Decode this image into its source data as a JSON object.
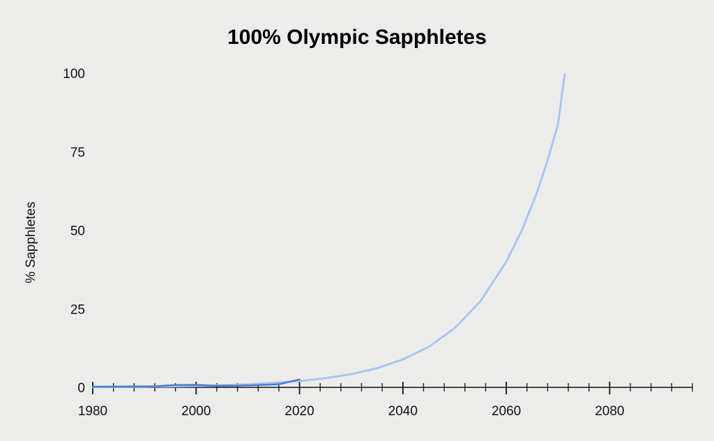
{
  "chart_data": {
    "type": "line",
    "title": "100% Olympic Sapphletes",
    "xlabel": "",
    "ylabel": "% Sapphletes",
    "xlim": [
      1980,
      2096
    ],
    "ylim": [
      0,
      100
    ],
    "x_ticks": [
      1980,
      2000,
      2020,
      2040,
      2060,
      2080
    ],
    "y_ticks": [
      0,
      25,
      50,
      75,
      100
    ],
    "x_minor_step": 4,
    "grid": false,
    "legend": "none",
    "series": [
      {
        "role": "observed",
        "color": "#3d7fe0",
        "points": [
          [
            1980,
            0.2
          ],
          [
            1984,
            0.25
          ],
          [
            1988,
            0.3
          ],
          [
            1992,
            0.3
          ],
          [
            1996,
            0.75
          ],
          [
            2000,
            0.8
          ],
          [
            2004,
            0.5
          ],
          [
            2008,
            0.55
          ],
          [
            2012,
            0.7
          ],
          [
            2016,
            1.0
          ],
          [
            2020,
            2.5
          ]
        ]
      },
      {
        "role": "projection",
        "color": "#abc5ec",
        "points": [
          [
            1980,
            0.1
          ],
          [
            1990,
            0.22
          ],
          [
            2000,
            0.45
          ],
          [
            2010,
            0.95
          ],
          [
            2020,
            2.0
          ],
          [
            2025,
            2.9
          ],
          [
            2030,
            4.2
          ],
          [
            2035,
            6.1
          ],
          [
            2040,
            8.9
          ],
          [
            2045,
            12.9
          ],
          [
            2050,
            18.8
          ],
          [
            2055,
            27.4
          ],
          [
            2060,
            40.0
          ],
          [
            2063,
            49.9
          ],
          [
            2066,
            62.3
          ],
          [
            2068,
            72.2
          ],
          [
            2070,
            83.7
          ],
          [
            2071.3,
            99.7
          ]
        ]
      }
    ]
  }
}
